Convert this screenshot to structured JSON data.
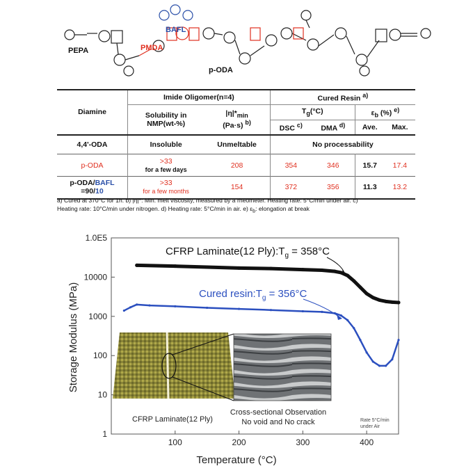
{
  "scheme": {
    "labels": {
      "pepa": "PEPA",
      "pmda": "PMDA",
      "bafl": "BAFL",
      "podak": "p-ODA"
    }
  },
  "table": {
    "diamine_header": "Diamine",
    "imide_header": "Imide Oligomer(n=4)",
    "cured_header": "Cured Resin ",
    "cured_header_sup": "a)",
    "solubility_header_1": "Solubility in",
    "solubility_header_2": "NMP(wt-%)",
    "visc_header_1": "|η|*",
    "visc_header_sub": "min",
    "visc_header_2": "(Pa·s) ",
    "visc_header_sup": "b)",
    "tg_header": "T",
    "tg_sub": "g",
    "tg_unit": "(°C)",
    "eb_header": "ε",
    "eb_sub": "b",
    "eb_unit": " (%) ",
    "eb_sup": "e)",
    "dsc": "DSC ",
    "dsc_sup": "c)",
    "dma": "DMA ",
    "dma_sup": "d)",
    "ave": "Ave.",
    "max": "Max.",
    "rows": [
      {
        "diamine": "4,4'-ODA",
        "sol_top": "Insoluble",
        "sol_bottom": "",
        "visc": "Unmeltable",
        "cured": "No processability"
      },
      {
        "diamine": "p-ODA",
        "sol_top": ">33",
        "sol_bottom": "for a few days",
        "visc": "208",
        "dsc": "354",
        "dma": "346",
        "ave": "15.7",
        "max": "17.4"
      },
      {
        "diamine_a": "p-ODA/",
        "diamine_b": "BAFL",
        "diamine_c": "=90/",
        "diamine_d": "10",
        "sol_top": ">33",
        "sol_bottom": "for a few months",
        "visc": "154",
        "dsc": "372",
        "dma": "356",
        "ave": "11.3",
        "max": "13.2"
      }
    ],
    "footnote_1": "a) Cured at 370°C for 1h.  b) |η|*: Min. melt viscosity, measured by a rheometer. Heating rate: 5°C/min under air. c)",
    "footnote_2": "Heating rate: 10°C/min under nitrogen. d) Heating rate: 5°C/min in air. e) ε",
    "footnote_2_sub": "b",
    "footnote_2_end": ": elongation at break"
  },
  "chart": {
    "ylabel": "Storage Modulus (MPa)",
    "xlabel": "Temperature (°C)",
    "yticks": [
      "1.0E5",
      "10000",
      "1000",
      "100",
      "10",
      "1"
    ],
    "xticks": [
      "100",
      "200",
      "300",
      "400"
    ],
    "cfrp_label": "CFRP Laminate(12 Ply):T",
    "cfrp_label_sub": "g",
    "cfrp_label_end": " = 358°C",
    "resin_label": "Cured resin:T",
    "resin_label_sub": "g",
    "resin_label_end": " = 356°C",
    "photo_caption": "CFRP Laminate(12 Ply)",
    "cross_caption_1": "Cross-sectional Observation",
    "cross_caption_2": "No void and No crack",
    "rate_1": "Rate 5°C/min",
    "rate_2": "under Air",
    "colors": {
      "cfrp": "#111111",
      "resin": "#2b4fbf"
    }
  },
  "chart_data": {
    "type": "line",
    "xlabel": "Temperature (°C)",
    "ylabel": "Storage Modulus (MPa)",
    "xlim": [
      0,
      450
    ],
    "ylim": [
      1,
      100000
    ],
    "yscale": "log",
    "series": [
      {
        "name": "CFRP Laminate(12 Ply):Tg = 358°C",
        "x": [
          40,
          100,
          150,
          200,
          250,
          300,
          330,
          350,
          360,
          370,
          380,
          390,
          400,
          410,
          420,
          430,
          440,
          450
        ],
        "y": [
          20000,
          19000,
          18000,
          17000,
          16500,
          15500,
          15000,
          14000,
          13000,
          11000,
          8000,
          5500,
          3800,
          3000,
          2600,
          2400,
          2300,
          2250
        ]
      },
      {
        "name": "Cured resin:Tg = 356°C",
        "x": [
          20,
          30,
          40,
          60,
          100,
          150,
          200,
          250,
          300,
          330,
          350,
          360,
          370,
          380,
          390,
          400,
          410,
          420,
          430,
          440,
          450
        ],
        "y": [
          1400,
          1700,
          2000,
          1900,
          1800,
          1650,
          1550,
          1450,
          1350,
          1300,
          1200,
          1050,
          800,
          500,
          250,
          120,
          70,
          55,
          55,
          80,
          250
        ]
      }
    ]
  }
}
